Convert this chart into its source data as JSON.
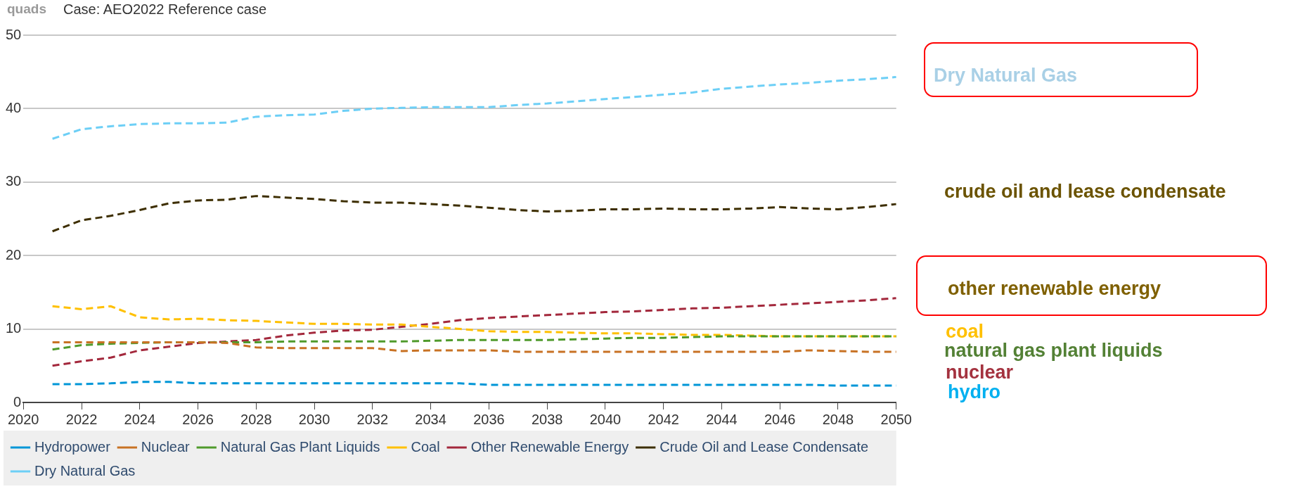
{
  "chart_data": {
    "type": "line",
    "ylabel": "quads",
    "subtitle": "Case: AEO2022 Reference case",
    "x": [
      2021,
      2022,
      2023,
      2024,
      2025,
      2026,
      2027,
      2028,
      2029,
      2030,
      2031,
      2032,
      2033,
      2034,
      2035,
      2036,
      2037,
      2038,
      2039,
      2040,
      2041,
      2042,
      2043,
      2044,
      2045,
      2046,
      2047,
      2048,
      2049,
      2050
    ],
    "series": [
      {
        "name": "Hydropower",
        "color": "#0096d7",
        "values": [
          2.5,
          2.5,
          2.6,
          2.8,
          2.8,
          2.6,
          2.6,
          2.6,
          2.6,
          2.6,
          2.6,
          2.6,
          2.6,
          2.6,
          2.6,
          2.4,
          2.4,
          2.4,
          2.4,
          2.4,
          2.4,
          2.4,
          2.4,
          2.4,
          2.4,
          2.4,
          2.4,
          2.3,
          2.3,
          2.3
        ]
      },
      {
        "name": "Nuclear",
        "color": "#c87224",
        "values": [
          8.2,
          8.2,
          8.2,
          8.2,
          8.2,
          8.2,
          8.1,
          7.5,
          7.4,
          7.4,
          7.4,
          7.4,
          7.0,
          7.1,
          7.1,
          7.1,
          6.9,
          6.9,
          6.9,
          6.9,
          6.9,
          6.9,
          6.9,
          6.9,
          6.9,
          6.9,
          7.1,
          7.0,
          6.9,
          6.9
        ]
      },
      {
        "name": "Natural Gas Plant Liquids",
        "color": "#4f9a2b",
        "values": [
          7.2,
          7.8,
          8.0,
          8.1,
          8.2,
          8.2,
          8.2,
          8.2,
          8.3,
          8.3,
          8.3,
          8.3,
          8.3,
          8.4,
          8.5,
          8.5,
          8.5,
          8.5,
          8.6,
          8.7,
          8.8,
          8.8,
          8.9,
          9.0,
          9.0,
          9.0,
          9.0,
          9.0,
          9.0,
          9.0
        ]
      },
      {
        "name": "Coal",
        "color": "#ffc000",
        "values": [
          13.1,
          12.7,
          13.1,
          11.6,
          11.3,
          11.4,
          11.2,
          11.1,
          10.9,
          10.7,
          10.7,
          10.6,
          10.6,
          10.3,
          10.0,
          9.7,
          9.6,
          9.6,
          9.5,
          9.4,
          9.4,
          9.3,
          9.2,
          9.2,
          9.1,
          9.0,
          9.0,
          9.0,
          9.0,
          9.0
        ]
      },
      {
        "name": "Other Renewable Energy",
        "color": "#a3283c",
        "values": [
          5.0,
          5.6,
          6.1,
          7.1,
          7.6,
          8.1,
          8.3,
          8.5,
          9.1,
          9.5,
          9.8,
          9.9,
          10.3,
          10.7,
          11.2,
          11.5,
          11.7,
          11.9,
          12.1,
          12.3,
          12.4,
          12.6,
          12.8,
          12.9,
          13.1,
          13.3,
          13.5,
          13.7,
          13.9,
          14.2
        ]
      },
      {
        "name": "Crude Oil and Lease Condensate",
        "color": "#3d2e00",
        "values": [
          23.3,
          24.8,
          25.4,
          26.2,
          27.1,
          27.5,
          27.6,
          28.1,
          27.9,
          27.7,
          27.4,
          27.2,
          27.2,
          27.0,
          26.8,
          26.5,
          26.2,
          26.0,
          26.1,
          26.3,
          26.3,
          26.4,
          26.3,
          26.3,
          26.4,
          26.6,
          26.4,
          26.3,
          26.6,
          27.0
        ]
      },
      {
        "name": "Dry Natural Gas",
        "color": "#6dcff6",
        "values": [
          35.9,
          37.2,
          37.6,
          37.9,
          38.0,
          38.0,
          38.1,
          38.9,
          39.1,
          39.2,
          39.7,
          40.0,
          40.1,
          40.2,
          40.2,
          40.2,
          40.5,
          40.7,
          41.0,
          41.3,
          41.6,
          41.9,
          42.2,
          42.7,
          43.0,
          43.3,
          43.5,
          43.8,
          44.0,
          44.3
        ]
      }
    ],
    "xlim": [
      2020,
      2050
    ],
    "xticks": [
      2020,
      2022,
      2024,
      2026,
      2028,
      2030,
      2032,
      2034,
      2036,
      2038,
      2040,
      2042,
      2044,
      2046,
      2048,
      2050
    ],
    "ylim": [
      0,
      50
    ],
    "yticks": [
      0,
      10,
      20,
      30,
      40,
      50
    ],
    "grid": "y",
    "legend": "bottom",
    "marker": "none",
    "line_style": "dashed",
    "annotations": [
      "Dry Natural Gas",
      "crude oil and lease condensate",
      "other renewable energy",
      "coal",
      "natural gas plant liquids",
      "nuclear",
      "hydro"
    ]
  }
}
